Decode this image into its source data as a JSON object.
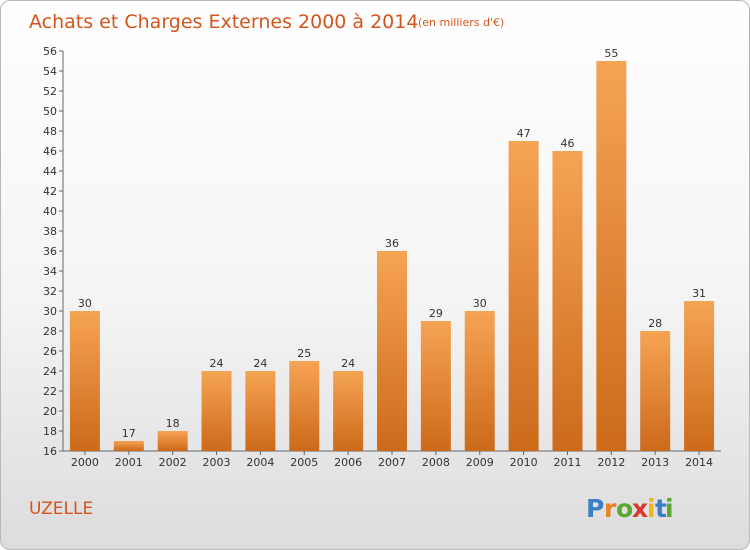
{
  "header": {
    "title": "Achats et Charges Externes 2000 à 2014",
    "subtitle": "(en milliers d'€)"
  },
  "footer": {
    "commune": "UZELLE",
    "brand_letters": [
      "P",
      "r",
      "o",
      "x",
      "i",
      "t",
      "i"
    ],
    "brand_colors": [
      "#3c7fc4",
      "#e8821e",
      "#5ba82e",
      "#d9372a",
      "#e8b81e",
      "#3c7fc4",
      "#5ba82e"
    ]
  },
  "colors": {
    "bar_light": "#f5a454",
    "bar_dark": "#cc6a1a",
    "accent": "#d4541c"
  },
  "chart_data": {
    "type": "bar",
    "categories": [
      "2000",
      "2001",
      "2002",
      "2003",
      "2004",
      "2005",
      "2006",
      "2007",
      "2008",
      "2009",
      "2010",
      "2011",
      "2012",
      "2013",
      "2014"
    ],
    "values": [
      30,
      17,
      18,
      24,
      24,
      25,
      24,
      36,
      29,
      30,
      47,
      46,
      55,
      28,
      31
    ],
    "ylim": [
      16,
      56
    ],
    "yticks": [
      16,
      18,
      20,
      22,
      24,
      26,
      28,
      30,
      32,
      34,
      36,
      38,
      40,
      42,
      44,
      46,
      48,
      50,
      52,
      54,
      56
    ],
    "grid": false
  }
}
